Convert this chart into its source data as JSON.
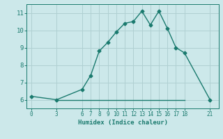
{
  "x": [
    0,
    3,
    6,
    7,
    8,
    9,
    10,
    11,
    12,
    13,
    14,
    15,
    16,
    17,
    18,
    21
  ],
  "y": [
    6.2,
    6.0,
    6.6,
    7.4,
    8.8,
    9.3,
    9.9,
    10.4,
    10.5,
    11.1,
    10.3,
    11.1,
    10.1,
    9.0,
    8.7,
    6.0
  ],
  "hline_x": [
    3,
    18
  ],
  "hline_y": [
    6.0,
    6.0
  ],
  "line_color": "#1a7a6e",
  "bg_color": "#cce8ea",
  "grid_color": "#b0d0d2",
  "xlabel": "Humidex (Indice chaleur)",
  "xticks": [
    0,
    3,
    6,
    7,
    8,
    9,
    10,
    11,
    12,
    13,
    14,
    15,
    16,
    17,
    18,
    21
  ],
  "yticks": [
    6,
    7,
    8,
    9,
    10,
    11
  ],
  "ylim": [
    5.5,
    11.5
  ],
  "xlim": [
    -0.5,
    22
  ]
}
